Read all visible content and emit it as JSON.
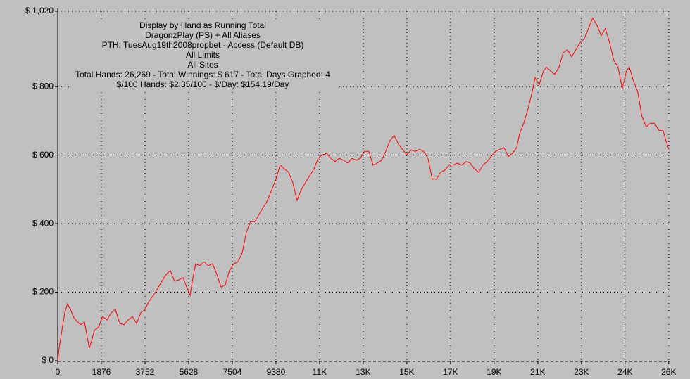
{
  "chart_data": {
    "type": "line",
    "annotations": [
      "Display by Hand as Running Total",
      "DragonzPlay (PS) + All Aliases",
      "PTH: TuesAug19th2008propbet - Access (Default DB)",
      "All Limits",
      "All Sites",
      "Total Hands: 26,269 - Total Winnings: $ 617 - Total Days Graphed: 4",
      "$/100 Hands: $2.35/100 - $/Day: $154.19/Day"
    ],
    "x": [
      0,
      60,
      180,
      300,
      420,
      545,
      700,
      850,
      1000,
      1150,
      1270,
      1360,
      1450,
      1570,
      1755,
      1935,
      2120,
      2300,
      2480,
      2660,
      2845,
      3025,
      3210,
      3390,
      3570,
      3750,
      3930,
      4115,
      4295,
      4480,
      4660,
      4840,
      5020,
      5205,
      5385,
      5570,
      5690,
      5810,
      5930,
      6110,
      6290,
      6475,
      6655,
      6840,
      7020,
      7200,
      7380,
      7565,
      7745,
      7930,
      8110,
      8290,
      8470,
      8655,
      8835,
      9015,
      9200,
      9380,
      9560,
      9745,
      9925,
      10105,
      10285,
      10470,
      10650,
      10830,
      11015,
      11195,
      11375,
      11560,
      11740,
      11920,
      12100,
      12285,
      12465,
      12650,
      12830,
      13010,
      13190,
      13375,
      13555,
      13735,
      13920,
      14100,
      14280,
      14460,
      14645,
      14825,
      15005,
      15190,
      15370,
      15550,
      15730,
      15915,
      16095,
      16280,
      16460,
      16640,
      16820,
      17005,
      17185,
      17365,
      17550,
      17730,
      17910,
      18095,
      18275,
      18455,
      18640,
      18820,
      19000,
      19180,
      19365,
      19545,
      19725,
      19850,
      20030,
      20210,
      20395,
      20515,
      20695,
      20880,
      21000,
      21180,
      21360,
      21545,
      21725,
      21905,
      22090,
      22270,
      22450,
      22630,
      22815,
      22995,
      23175,
      23360,
      23540,
      23720,
      23900,
      24085,
      24265,
      24450,
      24570,
      24750,
      24930,
      25110,
      25295,
      25475,
      25655,
      25840,
      26020,
      26145,
      26269
    ],
    "series": [
      {
        "name": "Running Total",
        "color": "#ff0000",
        "values": [
          0,
          37,
          88,
          140,
          166,
          150,
          125,
          113,
          105,
          113,
          68,
          37,
          57,
          88,
          98,
          129,
          119,
          140,
          150,
          109,
          105,
          119,
          129,
          109,
          140,
          150,
          174,
          191,
          211,
          232,
          252,
          263,
          232,
          236,
          242,
          211,
          191,
          242,
          283,
          277,
          289,
          277,
          283,
          252,
          215,
          221,
          263,
          283,
          289,
          314,
          376,
          406,
          406,
          427,
          448,
          468,
          499,
          530,
          571,
          560,
          550,
          520,
          468,
          499,
          520,
          540,
          560,
          591,
          601,
          605,
          591,
          581,
          591,
          585,
          577,
          591,
          585,
          591,
          611,
          611,
          571,
          577,
          585,
          611,
          642,
          658,
          632,
          617,
          601,
          615,
          611,
          617,
          611,
          591,
          530,
          530,
          550,
          556,
          571,
          571,
          577,
          571,
          581,
          577,
          560,
          550,
          571,
          581,
          597,
          611,
          617,
          622,
          597,
          605,
          622,
          662,
          693,
          734,
          785,
          826,
          805,
          846,
          857,
          846,
          836,
          857,
          898,
          908,
          887,
          908,
          928,
          939,
          970,
          1000,
          980,
          949,
          970,
          928,
          877,
          857,
          795,
          846,
          857,
          816,
          785,
          713,
          683,
          693,
          693,
          672,
          672,
          642,
          617
        ]
      }
    ],
    "xlim": [
      0,
      26300
    ],
    "xticks": [
      0,
      1876,
      3752,
      5628,
      7504,
      9380,
      {
        "value": 11256,
        "label": "11K"
      },
      {
        "value": 13132,
        "label": "13K"
      },
      {
        "value": 15008,
        "label": "15K"
      },
      {
        "value": 16884,
        "label": "17K"
      },
      {
        "value": 18760,
        "label": "19K"
      },
      {
        "value": 20636,
        "label": "21K"
      },
      {
        "value": 22512,
        "label": "23K"
      },
      {
        "value": 24388,
        "label": "24K"
      },
      {
        "value": 26264,
        "label": "26K"
      }
    ],
    "ylim": [
      0,
      1020
    ],
    "yticks": [
      {
        "value": 0,
        "label": "$ 0"
      },
      {
        "value": 200,
        "label": "$ 200"
      },
      {
        "value": 400,
        "label": "$ 400"
      },
      {
        "value": 600,
        "label": "$ 600"
      },
      {
        "value": 800,
        "label": "$ 800"
      },
      {
        "value": 1020,
        "label": "$ 1,020"
      }
    ],
    "grid": true
  }
}
